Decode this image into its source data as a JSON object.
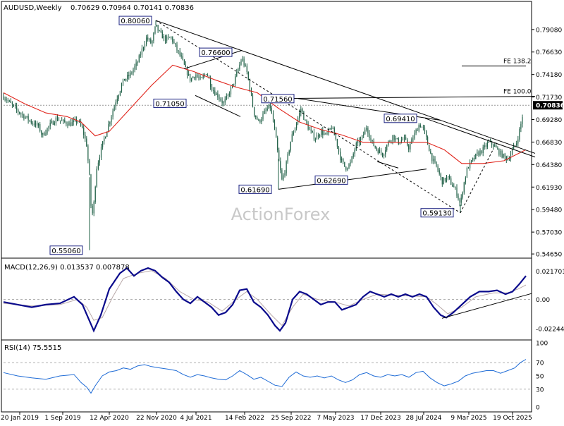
{
  "header": {
    "symbol": "AUDUSD,Weekly",
    "ohlc": "0.70629 0.70964 0.70141 0.70836"
  },
  "watermark": "ActionForex",
  "colors": {
    "candle": "#1f5f46",
    "sma": "#e0241b",
    "trendline": "#000000",
    "macd": "#0a0a8c",
    "macd_signal": "#b8a8a8",
    "rsi": "#1e6bd6",
    "label_border": "#1a2080",
    "current_price_bg": "#000000"
  },
  "chart_data": [
    {
      "type": "candlestick",
      "name": "AUDUSD weekly price",
      "ylim": [
        0.5435,
        0.8183
      ],
      "price_axis": [
        "0.79080",
        "0.76630",
        "0.74180",
        "0.71730",
        "0.69280",
        "0.66830",
        "0.64380",
        "0.61930",
        "0.59480",
        "0.57030",
        "0.54650"
      ],
      "current_price_label": "0.70836",
      "x_dates": [
        "20 Jan 2019",
        "1 Sep 2019",
        "12 Apr 2020",
        "22 Nov 2020",
        "4 Jul 2021",
        "14 Feb 2022",
        "25 Sep 2022",
        "7 May 2023",
        "17 Dec 2023",
        "28 Jul 2024",
        "9 Mar 2025",
        "19 Oct 2025"
      ],
      "swing_labels": [
        "0.80060",
        "0.76600",
        "0.71050",
        "0.71560",
        "0.69410",
        "0.61690",
        "0.62690",
        "0.59130",
        "0.55060"
      ],
      "fib_labels": [
        "FE 138.2",
        "FE 100.0"
      ],
      "close_path": [
        [
          0,
          0.718
        ],
        [
          10,
          0.71
        ],
        [
          20,
          0.702
        ],
        [
          30,
          0.696
        ],
        [
          40,
          0.69
        ],
        [
          50,
          0.685
        ],
        [
          55,
          0.675
        ],
        [
          65,
          0.686
        ],
        [
          75,
          0.694
        ],
        [
          85,
          0.69
        ],
        [
          95,
          0.688
        ],
        [
          105,
          0.692
        ],
        [
          112,
          0.682
        ],
        [
          118,
          0.665
        ],
        [
          122,
          0.63
        ],
        [
          125,
          0.585
        ],
        [
          128,
          0.6
        ],
        [
          132,
          0.64
        ],
        [
          140,
          0.665
        ],
        [
          150,
          0.69
        ],
        [
          160,
          0.715
        ],
        [
          170,
          0.735
        ],
        [
          180,
          0.742
        ],
        [
          190,
          0.755
        ],
        [
          197,
          0.77
        ],
        [
          203,
          0.782
        ],
        [
          210,
          0.775
        ],
        [
          216,
          0.795
        ],
        [
          222,
          0.786
        ],
        [
          230,
          0.78
        ],
        [
          238,
          0.782
        ],
        [
          245,
          0.77
        ],
        [
          252,
          0.76
        ],
        [
          258,
          0.748
        ],
        [
          265,
          0.736
        ],
        [
          272,
          0.742
        ],
        [
          280,
          0.735
        ],
        [
          288,
          0.745
        ],
        [
          295,
          0.728
        ],
        [
          300,
          0.722
        ],
        [
          305,
          0.718
        ],
        [
          312,
          0.71
        ],
        [
          318,
          0.718
        ],
        [
          325,
          0.73
        ],
        [
          332,
          0.745
        ],
        [
          338,
          0.76
        ],
        [
          345,
          0.745
        ],
        [
          350,
          0.725
        ],
        [
          355,
          0.7
        ],
        [
          362,
          0.69
        ],
        [
          370,
          0.7
        ],
        [
          378,
          0.708
        ],
        [
          385,
          0.68
        ],
        [
          390,
          0.65
        ],
        [
          395,
          0.626
        ],
        [
          400,
          0.64
        ],
        [
          408,
          0.672
        ],
        [
          415,
          0.688
        ],
        [
          422,
          0.705
        ],
        [
          428,
          0.69
        ],
        [
          435,
          0.68
        ],
        [
          442,
          0.672
        ],
        [
          450,
          0.68
        ],
        [
          458,
          0.675
        ],
        [
          465,
          0.685
        ],
        [
          472,
          0.67
        ],
        [
          478,
          0.65
        ],
        [
          485,
          0.64
        ],
        [
          492,
          0.645
        ],
        [
          500,
          0.665
        ],
        [
          508,
          0.672
        ],
        [
          515,
          0.685
        ],
        [
          522,
          0.668
        ],
        [
          530,
          0.66
        ],
        [
          538,
          0.655
        ],
        [
          545,
          0.667
        ],
        [
          552,
          0.675
        ],
        [
          560,
          0.668
        ],
        [
          568,
          0.672
        ],
        [
          575,
          0.662
        ],
        [
          582,
          0.675
        ],
        [
          590,
          0.688
        ],
        [
          596,
          0.682
        ],
        [
          602,
          0.665
        ],
        [
          608,
          0.65
        ],
        [
          615,
          0.64
        ],
        [
          622,
          0.625
        ],
        [
          630,
          0.63
        ],
        [
          636,
          0.622
        ],
        [
          642,
          0.615
        ],
        [
          648,
          0.6
        ],
        [
          652,
          0.62
        ],
        [
          658,
          0.64
        ],
        [
          665,
          0.648
        ],
        [
          672,
          0.655
        ],
        [
          680,
          0.66
        ],
        [
          688,
          0.668
        ],
        [
          695,
          0.665
        ],
        [
          702,
          0.658
        ],
        [
          710,
          0.652
        ],
        [
          716,
          0.65
        ],
        [
          722,
          0.66
        ],
        [
          728,
          0.668
        ],
        [
          734,
          0.688
        ],
        [
          738,
          0.705
        ],
        [
          741,
          0.708
        ]
      ],
      "sma_path": [
        [
          0,
          0.722
        ],
        [
          30,
          0.71
        ],
        [
          60,
          0.7
        ],
        [
          90,
          0.696
        ],
        [
          110,
          0.69
        ],
        [
          130,
          0.675
        ],
        [
          150,
          0.68
        ],
        [
          180,
          0.705
        ],
        [
          210,
          0.73
        ],
        [
          240,
          0.752
        ],
        [
          270,
          0.745
        ],
        [
          300,
          0.736
        ],
        [
          330,
          0.728
        ],
        [
          360,
          0.722
        ],
        [
          390,
          0.705
        ],
        [
          420,
          0.69
        ],
        [
          450,
          0.682
        ],
        [
          480,
          0.676
        ],
        [
          510,
          0.668
        ],
        [
          540,
          0.668
        ],
        [
          570,
          0.668
        ],
        [
          600,
          0.668
        ],
        [
          625,
          0.66
        ],
        [
          650,
          0.645
        ],
        [
          680,
          0.645
        ],
        [
          710,
          0.648
        ],
        [
          741,
          0.66
        ]
      ]
    },
    {
      "type": "line",
      "name": "MACD(12,26,9) 0.013537 0.007878",
      "ylim": [
        -0.03,
        0.03
      ],
      "axis_labels": [
        "0.021701",
        "0.00",
        "-0.022445"
      ],
      "macd_path": [
        [
          0,
          -0.002
        ],
        [
          20,
          -0.004
        ],
        [
          40,
          -0.006
        ],
        [
          60,
          -0.004
        ],
        [
          80,
          -0.003
        ],
        [
          100,
          0.002
        ],
        [
          112,
          -0.004
        ],
        [
          120,
          -0.014
        ],
        [
          128,
          -0.024
        ],
        [
          138,
          -0.012
        ],
        [
          150,
          0.008
        ],
        [
          165,
          0.02
        ],
        [
          175,
          0.024
        ],
        [
          185,
          0.018
        ],
        [
          195,
          0.022
        ],
        [
          205,
          0.024
        ],
        [
          215,
          0.022
        ],
        [
          225,
          0.017
        ],
        [
          235,
          0.013
        ],
        [
          245,
          0.006
        ],
        [
          255,
          0.0
        ],
        [
          265,
          -0.003
        ],
        [
          275,
          0.002
        ],
        [
          285,
          -0.002
        ],
        [
          295,
          -0.006
        ],
        [
          305,
          -0.012
        ],
        [
          315,
          -0.01
        ],
        [
          325,
          -0.004
        ],
        [
          335,
          0.007
        ],
        [
          345,
          0.008
        ],
        [
          355,
          -0.002
        ],
        [
          365,
          -0.006
        ],
        [
          375,
          -0.012
        ],
        [
          385,
          -0.02
        ],
        [
          392,
          -0.024
        ],
        [
          400,
          -0.018
        ],
        [
          410,
          0.0
        ],
        [
          420,
          0.006
        ],
        [
          430,
          0.004
        ],
        [
          440,
          0.0
        ],
        [
          450,
          -0.004
        ],
        [
          460,
          -0.002
        ],
        [
          470,
          -0.002
        ],
        [
          480,
          -0.008
        ],
        [
          490,
          -0.006
        ],
        [
          500,
          -0.004
        ],
        [
          510,
          0.002
        ],
        [
          520,
          0.006
        ],
        [
          530,
          0.004
        ],
        [
          540,
          0.002
        ],
        [
          550,
          0.004
        ],
        [
          560,
          0.002
        ],
        [
          570,
          0.004
        ],
        [
          580,
          0.002
        ],
        [
          590,
          0.004
        ],
        [
          600,
          0.002
        ],
        [
          610,
          -0.006
        ],
        [
          620,
          -0.012
        ],
        [
          628,
          -0.014
        ],
        [
          638,
          -0.01
        ],
        [
          650,
          -0.004
        ],
        [
          662,
          0.002
        ],
        [
          675,
          0.006
        ],
        [
          688,
          0.006
        ],
        [
          700,
          0.007
        ],
        [
          712,
          0.004
        ],
        [
          722,
          0.006
        ],
        [
          732,
          0.012
        ],
        [
          741,
          0.018
        ]
      ],
      "signal_path": [
        [
          0,
          -0.003
        ],
        [
          40,
          -0.005
        ],
        [
          80,
          -0.004
        ],
        [
          105,
          0.0
        ],
        [
          118,
          -0.006
        ],
        [
          128,
          -0.016
        ],
        [
          140,
          -0.014
        ],
        [
          155,
          0.002
        ],
        [
          170,
          0.016
        ],
        [
          190,
          0.02
        ],
        [
          210,
          0.022
        ],
        [
          230,
          0.016
        ],
        [
          250,
          0.006
        ],
        [
          270,
          0.0
        ],
        [
          290,
          -0.002
        ],
        [
          310,
          -0.009
        ],
        [
          330,
          0.0
        ],
        [
          345,
          0.006
        ],
        [
          360,
          0.0
        ],
        [
          380,
          -0.012
        ],
        [
          395,
          -0.02
        ],
        [
          410,
          -0.006
        ],
        [
          425,
          0.004
        ],
        [
          445,
          0.0
        ],
        [
          470,
          -0.002
        ],
        [
          490,
          -0.005
        ],
        [
          510,
          0.0
        ],
        [
          530,
          0.004
        ],
        [
          560,
          0.003
        ],
        [
          600,
          0.002
        ],
        [
          615,
          -0.004
        ],
        [
          630,
          -0.011
        ],
        [
          650,
          -0.006
        ],
        [
          670,
          0.002
        ],
        [
          695,
          0.005
        ],
        [
          715,
          0.005
        ],
        [
          730,
          0.008
        ],
        [
          741,
          0.011
        ]
      ]
    },
    {
      "type": "line",
      "name": "RSI(14) 75.5515",
      "ylim": [
        0,
        100
      ],
      "axis_labels": [
        "100",
        "70",
        "50",
        "30",
        "0"
      ],
      "levels": [
        70,
        30
      ],
      "path": [
        [
          0,
          55
        ],
        [
          20,
          50
        ],
        [
          40,
          47
        ],
        [
          60,
          45
        ],
        [
          80,
          50
        ],
        [
          100,
          52
        ],
        [
          110,
          40
        ],
        [
          118,
          33
        ],
        [
          124,
          24
        ],
        [
          130,
          35
        ],
        [
          140,
          50
        ],
        [
          150,
          56
        ],
        [
          160,
          58
        ],
        [
          170,
          62
        ],
        [
          180,
          60
        ],
        [
          190,
          65
        ],
        [
          200,
          67
        ],
        [
          210,
          64
        ],
        [
          222,
          62
        ],
        [
          235,
          60
        ],
        [
          245,
          58
        ],
        [
          255,
          52
        ],
        [
          265,
          48
        ],
        [
          275,
          52
        ],
        [
          285,
          50
        ],
        [
          295,
          47
        ],
        [
          305,
          45
        ],
        [
          315,
          44
        ],
        [
          325,
          50
        ],
        [
          335,
          58
        ],
        [
          345,
          52
        ],
        [
          355,
          45
        ],
        [
          365,
          48
        ],
        [
          375,
          42
        ],
        [
          385,
          36
        ],
        [
          395,
          34
        ],
        [
          405,
          48
        ],
        [
          415,
          56
        ],
        [
          425,
          50
        ],
        [
          435,
          48
        ],
        [
          445,
          50
        ],
        [
          455,
          47
        ],
        [
          465,
          50
        ],
        [
          475,
          44
        ],
        [
          485,
          40
        ],
        [
          495,
          44
        ],
        [
          505,
          52
        ],
        [
          515,
          55
        ],
        [
          525,
          50
        ],
        [
          535,
          48
        ],
        [
          545,
          52
        ],
        [
          555,
          50
        ],
        [
          565,
          52
        ],
        [
          575,
          48
        ],
        [
          585,
          55
        ],
        [
          595,
          57
        ],
        [
          605,
          47
        ],
        [
          615,
          40
        ],
        [
          625,
          35
        ],
        [
          635,
          38
        ],
        [
          645,
          42
        ],
        [
          655,
          50
        ],
        [
          665,
          54
        ],
        [
          675,
          56
        ],
        [
          685,
          58
        ],
        [
          695,
          58
        ],
        [
          705,
          54
        ],
        [
          715,
          58
        ],
        [
          725,
          62
        ],
        [
          733,
          70
        ],
        [
          741,
          75
        ]
      ]
    }
  ]
}
